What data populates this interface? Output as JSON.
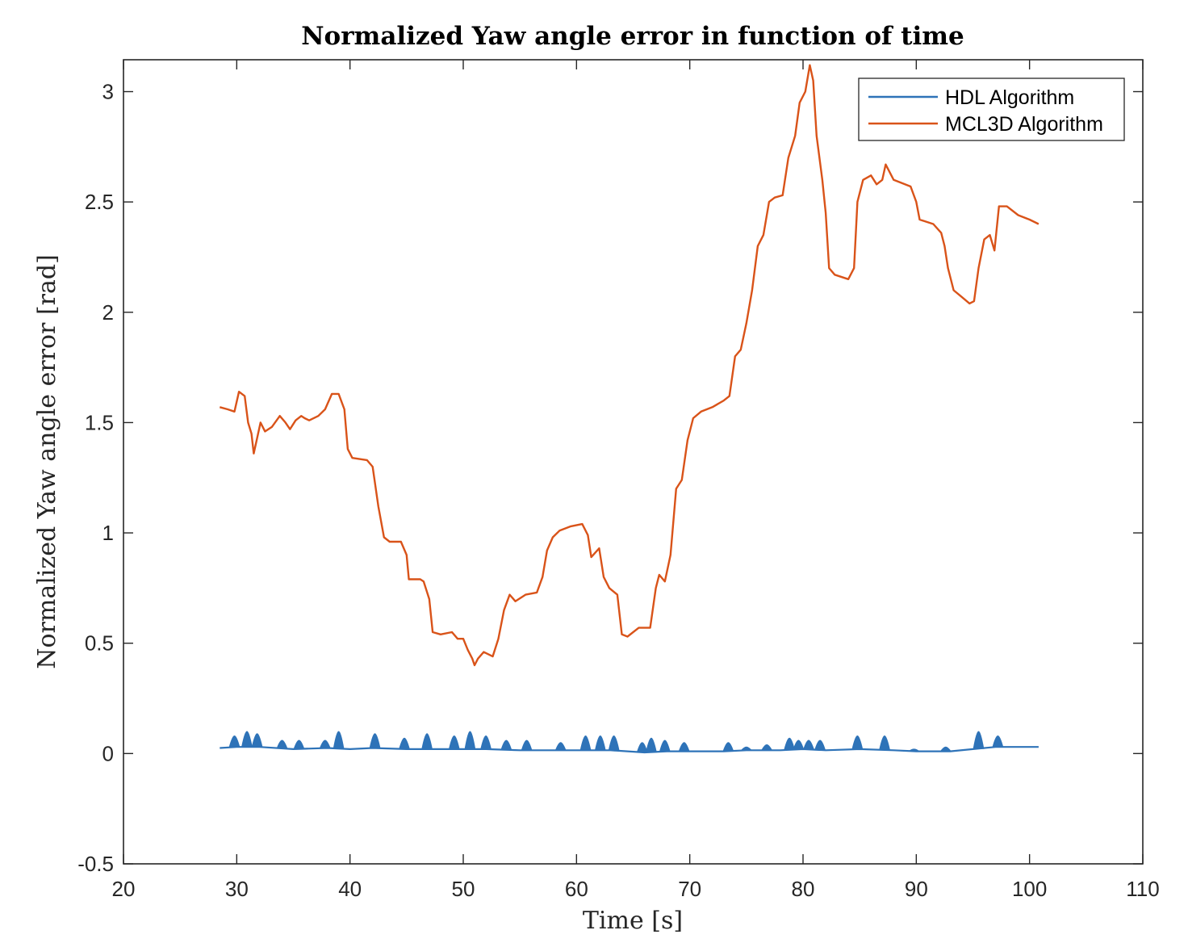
{
  "chart_data": {
    "type": "line",
    "title": "Normalized Yaw angle error in function of time",
    "xlabel": "Time [s]",
    "ylabel": "Normalized Yaw angle error [rad]",
    "xlim": [
      20,
      110
    ],
    "ylim": [
      -0.5,
      3.15
    ],
    "xticks": [
      20,
      30,
      40,
      50,
      60,
      70,
      80,
      90,
      100,
      110
    ],
    "yticks": [
      -0.5,
      0,
      0.5,
      1,
      1.5,
      2,
      2.5,
      3
    ],
    "xtick_labels": [
      "20",
      "30",
      "40",
      "50",
      "60",
      "70",
      "80",
      "90",
      "100",
      "110"
    ],
    "ytick_labels": [
      "-0.5",
      "0",
      "0.5",
      "1",
      "1.5",
      "2",
      "2.5",
      "3"
    ],
    "grid": false,
    "legend_position": "top-right",
    "series": [
      {
        "name": "HDL Algorithm",
        "color": "#2e73b8",
        "baseline": [
          [
            28.5,
            0.025
          ],
          [
            30,
            0.03
          ],
          [
            32,
            0.03
          ],
          [
            35,
            0.02
          ],
          [
            38,
            0.025
          ],
          [
            40,
            0.02
          ],
          [
            42,
            0.025
          ],
          [
            45,
            0.02
          ],
          [
            48,
            0.02
          ],
          [
            50,
            0.02
          ],
          [
            52,
            0.02
          ],
          [
            55,
            0.015
          ],
          [
            58,
            0.015
          ],
          [
            60,
            0.015
          ],
          [
            63,
            0.015
          ],
          [
            66,
            0.005
          ],
          [
            68,
            0.01
          ],
          [
            70,
            0.01
          ],
          [
            73,
            0.01
          ],
          [
            75,
            0.015
          ],
          [
            78,
            0.015
          ],
          [
            80,
            0.02
          ],
          [
            82,
            0.015
          ],
          [
            85,
            0.02
          ],
          [
            88,
            0.015
          ],
          [
            90,
            0.01
          ],
          [
            93,
            0.01
          ],
          [
            95,
            0.02
          ],
          [
            97,
            0.03
          ],
          [
            100.8,
            0.03
          ]
        ],
        "spikes": [
          [
            29.8,
            0.08
          ],
          [
            30.9,
            0.1
          ],
          [
            31.8,
            0.09
          ],
          [
            34,
            0.06
          ],
          [
            35.5,
            0.06
          ],
          [
            37.8,
            0.06
          ],
          [
            39,
            0.1
          ],
          [
            42.2,
            0.09
          ],
          [
            44.8,
            0.07
          ],
          [
            46.8,
            0.09
          ],
          [
            49.2,
            0.08
          ],
          [
            50.6,
            0.1
          ],
          [
            52,
            0.08
          ],
          [
            53.8,
            0.06
          ],
          [
            55.6,
            0.06
          ],
          [
            58.6,
            0.05
          ],
          [
            60.8,
            0.08
          ],
          [
            62.1,
            0.08
          ],
          [
            63.3,
            0.08
          ],
          [
            65.8,
            0.05
          ],
          [
            66.6,
            0.07
          ],
          [
            67.8,
            0.06
          ],
          [
            69.5,
            0.05
          ],
          [
            73.4,
            0.05
          ],
          [
            75,
            0.03
          ],
          [
            76.8,
            0.04
          ],
          [
            78.8,
            0.07
          ],
          [
            79.6,
            0.06
          ],
          [
            80.5,
            0.06
          ],
          [
            81.5,
            0.06
          ],
          [
            84.8,
            0.08
          ],
          [
            87.2,
            0.08
          ],
          [
            89.8,
            0.02
          ],
          [
            92.6,
            0.03
          ],
          [
            95.5,
            0.1
          ],
          [
            97.2,
            0.08
          ]
        ]
      },
      {
        "name": "MCL3D Algorithm",
        "color": "#d95319",
        "points": [
          [
            28.5,
            1.57
          ],
          [
            29.2,
            1.56
          ],
          [
            29.8,
            1.55
          ],
          [
            30.2,
            1.64
          ],
          [
            30.7,
            1.62
          ],
          [
            31,
            1.5
          ],
          [
            31.3,
            1.45
          ],
          [
            31.5,
            1.36
          ],
          [
            31.8,
            1.43
          ],
          [
            32.1,
            1.5
          ],
          [
            32.5,
            1.46
          ],
          [
            33.1,
            1.48
          ],
          [
            33.8,
            1.53
          ],
          [
            34.3,
            1.5
          ],
          [
            34.7,
            1.47
          ],
          [
            35.2,
            1.51
          ],
          [
            35.7,
            1.53
          ],
          [
            36,
            1.52
          ],
          [
            36.4,
            1.51
          ],
          [
            37.2,
            1.53
          ],
          [
            37.8,
            1.56
          ],
          [
            38.4,
            1.63
          ],
          [
            39,
            1.63
          ],
          [
            39.5,
            1.56
          ],
          [
            39.8,
            1.38
          ],
          [
            40.2,
            1.34
          ],
          [
            41.5,
            1.33
          ],
          [
            42,
            1.3
          ],
          [
            42.5,
            1.12
          ],
          [
            43,
            0.98
          ],
          [
            43.5,
            0.96
          ],
          [
            44.5,
            0.96
          ],
          [
            45,
            0.9
          ],
          [
            45.2,
            0.79
          ],
          [
            46.2,
            0.79
          ],
          [
            46.5,
            0.78
          ],
          [
            47,
            0.7
          ],
          [
            47.3,
            0.55
          ],
          [
            48,
            0.54
          ],
          [
            49,
            0.55
          ],
          [
            49.5,
            0.52
          ],
          [
            50,
            0.52
          ],
          [
            50.4,
            0.47
          ],
          [
            50.8,
            0.43
          ],
          [
            51,
            0.4
          ],
          [
            51.3,
            0.43
          ],
          [
            51.8,
            0.46
          ],
          [
            52.6,
            0.44
          ],
          [
            53.1,
            0.52
          ],
          [
            53.6,
            0.65
          ],
          [
            54.1,
            0.72
          ],
          [
            54.6,
            0.69
          ],
          [
            55.5,
            0.72
          ],
          [
            56.5,
            0.73
          ],
          [
            57,
            0.8
          ],
          [
            57.4,
            0.92
          ],
          [
            57.9,
            0.98
          ],
          [
            58.5,
            1.01
          ],
          [
            59.5,
            1.03
          ],
          [
            60.5,
            1.04
          ],
          [
            61,
            0.99
          ],
          [
            61.3,
            0.89
          ],
          [
            62,
            0.93
          ],
          [
            62.4,
            0.8
          ],
          [
            62.9,
            0.75
          ],
          [
            63.6,
            0.72
          ],
          [
            64,
            0.54
          ],
          [
            64.5,
            0.53
          ],
          [
            65.5,
            0.57
          ],
          [
            66.5,
            0.57
          ],
          [
            67,
            0.75
          ],
          [
            67.3,
            0.81
          ],
          [
            67.8,
            0.78
          ],
          [
            68.3,
            0.9
          ],
          [
            68.8,
            1.2
          ],
          [
            69.3,
            1.24
          ],
          [
            69.8,
            1.42
          ],
          [
            70.3,
            1.52
          ],
          [
            71,
            1.55
          ],
          [
            72,
            1.57
          ],
          [
            73,
            1.6
          ],
          [
            73.5,
            1.62
          ],
          [
            74,
            1.8
          ],
          [
            74.5,
            1.83
          ],
          [
            75,
            1.95
          ],
          [
            75.5,
            2.1
          ],
          [
            76,
            2.3
          ],
          [
            76.5,
            2.35
          ],
          [
            77,
            2.5
          ],
          [
            77.5,
            2.52
          ],
          [
            78.2,
            2.53
          ],
          [
            78.7,
            2.7
          ],
          [
            79.3,
            2.8
          ],
          [
            79.7,
            2.95
          ],
          [
            80.2,
            3.0
          ],
          [
            80.6,
            3.12
          ],
          [
            80.9,
            3.05
          ],
          [
            81.2,
            2.8
          ],
          [
            81.7,
            2.6
          ],
          [
            82,
            2.45
          ],
          [
            82.3,
            2.2
          ],
          [
            82.8,
            2.17
          ],
          [
            84,
            2.15
          ],
          [
            84.5,
            2.2
          ],
          [
            84.8,
            2.5
          ],
          [
            85.3,
            2.6
          ],
          [
            86,
            2.62
          ],
          [
            86.5,
            2.58
          ],
          [
            87,
            2.6
          ],
          [
            87.3,
            2.67
          ],
          [
            88,
            2.6
          ],
          [
            89.5,
            2.57
          ],
          [
            90,
            2.5
          ],
          [
            90.3,
            2.42
          ],
          [
            91.5,
            2.4
          ],
          [
            92.2,
            2.36
          ],
          [
            92.5,
            2.3
          ],
          [
            92.8,
            2.2
          ],
          [
            93.3,
            2.1
          ],
          [
            94,
            2.07
          ],
          [
            94.7,
            2.04
          ],
          [
            95.1,
            2.05
          ],
          [
            95.5,
            2.2
          ],
          [
            96,
            2.33
          ],
          [
            96.5,
            2.35
          ],
          [
            96.9,
            2.28
          ],
          [
            97.3,
            2.48
          ],
          [
            98,
            2.48
          ],
          [
            99,
            2.44
          ],
          [
            100,
            2.42
          ],
          [
            100.8,
            2.4
          ]
        ]
      }
    ]
  }
}
